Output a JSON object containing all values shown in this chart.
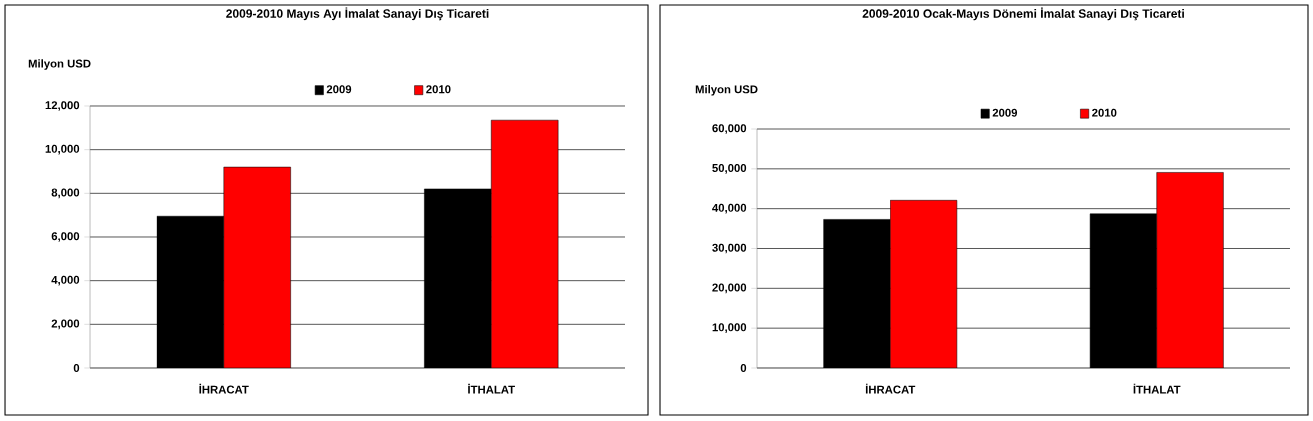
{
  "chart_data": [
    {
      "type": "bar",
      "title": "2009-2010 Mayıs Ayı İmalat Sanayi Dış Ticareti",
      "ylabel": "Milyon USD",
      "categories": [
        "İHRACAT",
        "İTHALAT"
      ],
      "series": [
        {
          "name": "2009",
          "color": "#000000",
          "values": [
            6950,
            8200
          ]
        },
        {
          "name": "2010",
          "color": "#ff0000",
          "values": [
            9200,
            11350
          ]
        }
      ],
      "ylim": [
        0,
        12000
      ],
      "yticks": [
        0,
        {
          "value": 2000,
          "label": "2,000"
        },
        {
          "value": 4000,
          "label": "4,000"
        },
        {
          "value": 6000,
          "label": "6,000"
        },
        {
          "value": 8000,
          "label": "8,000"
        },
        {
          "value": 10000,
          "label": "10,000"
        },
        {
          "value": 12000,
          "label": "12,000"
        }
      ],
      "grid": "y",
      "legend": "top"
    },
    {
      "type": "bar",
      "title": "2009-2010 Ocak-Mayıs Dönemi İmalat Sanayi Dış Ticareti",
      "ylabel": "Milyon USD",
      "categories": [
        "İHRACAT",
        "İTHALAT"
      ],
      "series": [
        {
          "name": "2009",
          "color": "#000000",
          "values": [
            37300,
            38700
          ]
        },
        {
          "name": "2010",
          "color": "#ff0000",
          "values": [
            42100,
            49100
          ]
        }
      ],
      "ylim": [
        0,
        60000
      ],
      "yticks": [
        0,
        {
          "value": 10000,
          "label": "10,000"
        },
        {
          "value": 20000,
          "label": "20,000"
        },
        {
          "value": 30000,
          "label": "30,000"
        },
        {
          "value": 40000,
          "label": "40,000"
        },
        {
          "value": 50000,
          "label": "50,000"
        },
        {
          "value": 60000,
          "label": "60,000"
        }
      ],
      "grid": "y",
      "legend": "top"
    }
  ]
}
